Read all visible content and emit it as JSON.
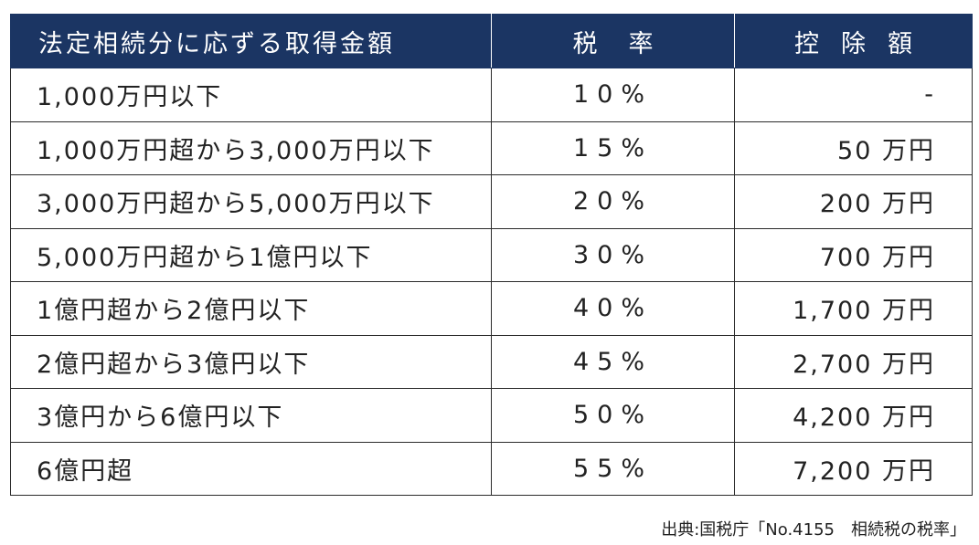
{
  "table": {
    "headers": {
      "bracket": "法定相続分に応ずる取得金額",
      "rate": "税率",
      "deduction": "控除額"
    },
    "rows": [
      {
        "bracket": "1,000万円以下",
        "rate": "10%",
        "deduction": "-"
      },
      {
        "bracket": "1,000万円超から3,000万円以下",
        "rate": "15%",
        "deduction": "50 万円"
      },
      {
        "bracket": "3,000万円超から5,000万円以下",
        "rate": "20%",
        "deduction": "200 万円"
      },
      {
        "bracket": "5,000万円超から1億円以下",
        "rate": "30%",
        "deduction": "700 万円"
      },
      {
        "bracket": "1億円超から2億円以下",
        "rate": "40%",
        "deduction": "1,700 万円"
      },
      {
        "bracket": "2億円超から3億円以下",
        "rate": "45%",
        "deduction": "2,700 万円"
      },
      {
        "bracket": "3億円から6億円以下",
        "rate": "50%",
        "deduction": "4,200 万円"
      },
      {
        "bracket": "6億円超",
        "rate": "55%",
        "deduction": "7,200 万円"
      }
    ]
  },
  "source": "出典:国税庁「No.4155　相続税の税率」",
  "colors": {
    "header_background": "#1b3563",
    "header_text": "#ffffff",
    "border": "#2b2b2b",
    "text": "#222222"
  }
}
